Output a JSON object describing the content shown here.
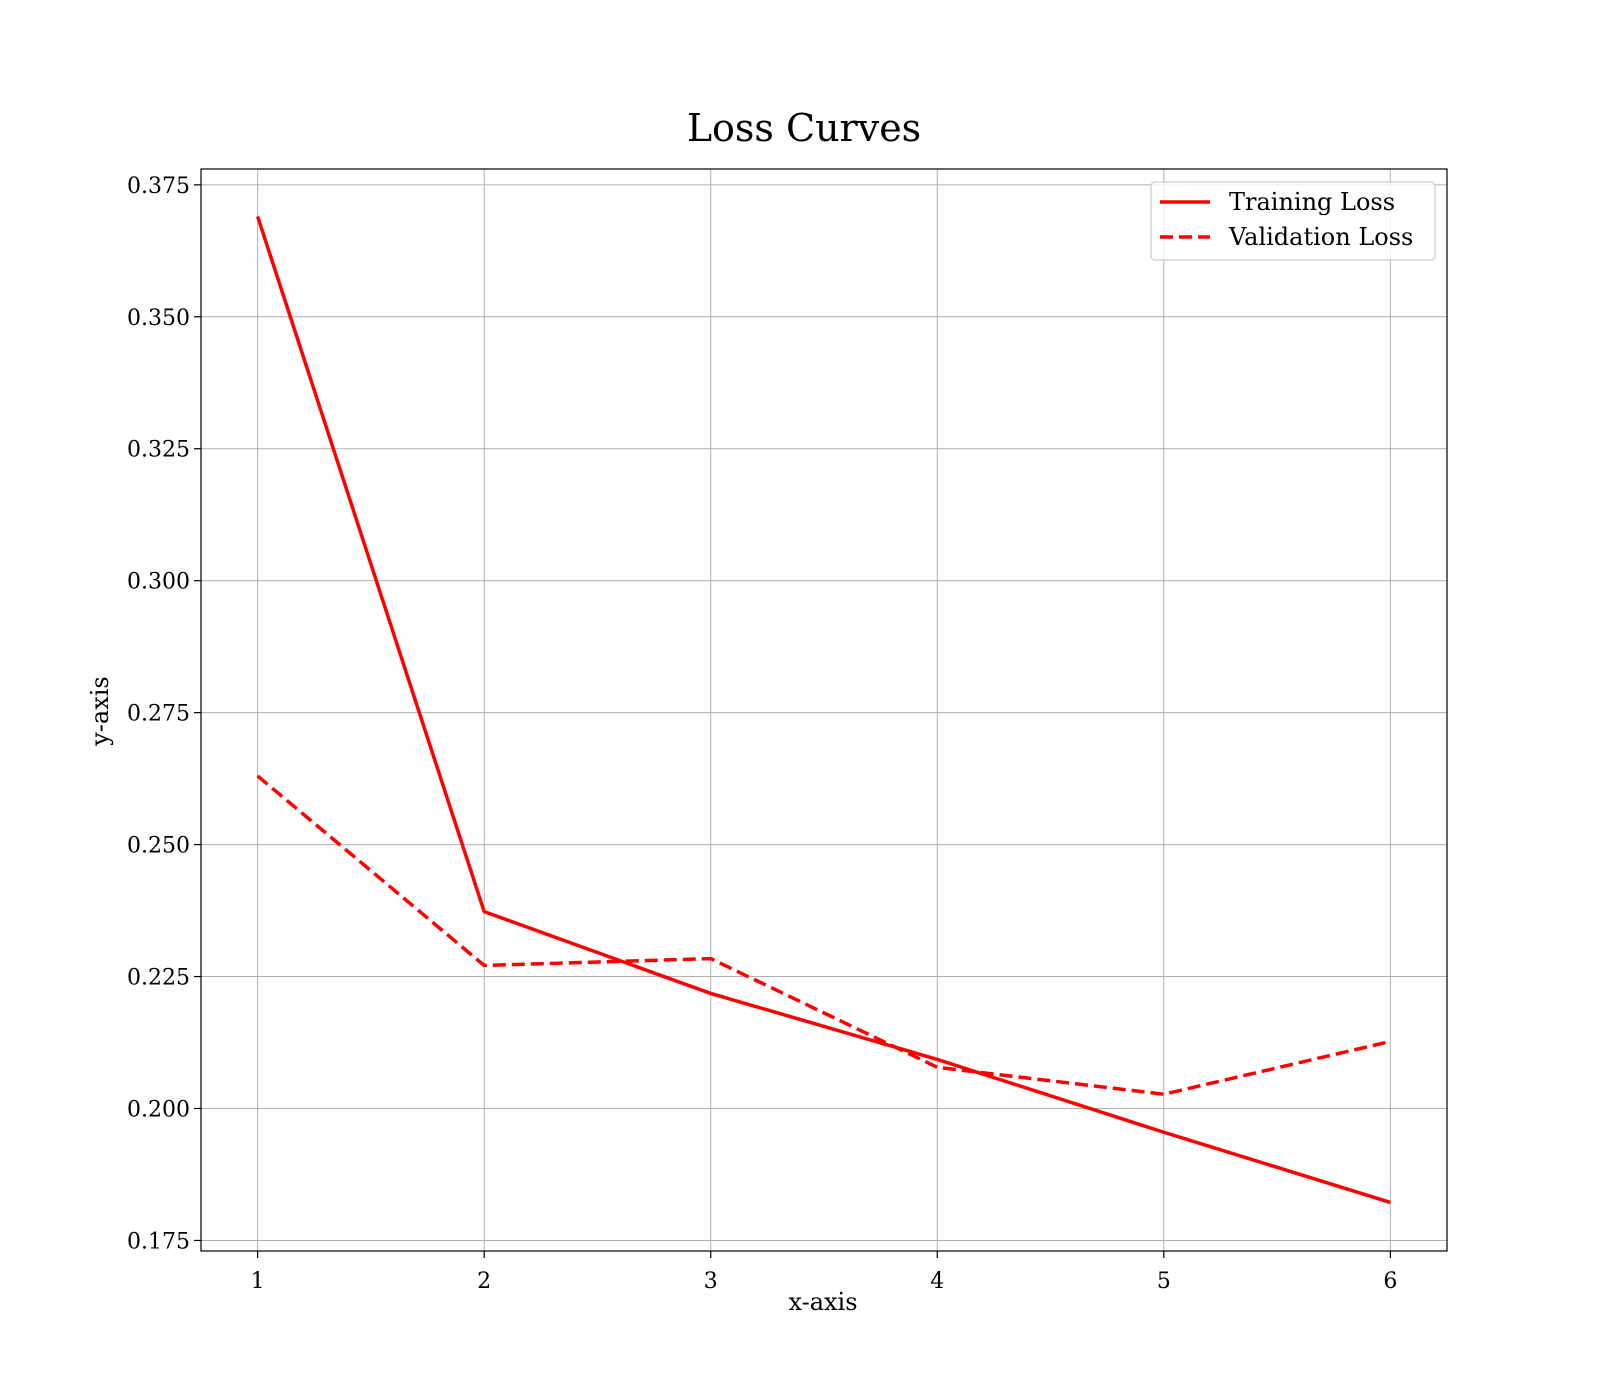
{
  "chart_data": {
    "type": "line",
    "title": "Loss Curves",
    "xlabel": "x-axis",
    "ylabel": "y-axis",
    "x": [
      1,
      2,
      3,
      4,
      5,
      6
    ],
    "xlim": [
      0.75,
      6.25
    ],
    "ylim": [
      0.173,
      0.378
    ],
    "xticks": [
      1,
      2,
      3,
      4,
      5,
      6
    ],
    "yticks": [
      0.175,
      0.2,
      0.225,
      0.25,
      0.275,
      0.3,
      0.325,
      0.35,
      0.375
    ],
    "ytick_labels": [
      "0.175",
      "0.200",
      "0.225",
      "0.250",
      "0.275",
      "0.300",
      "0.325",
      "0.350",
      "0.375"
    ],
    "grid": true,
    "legend_position": "top-right",
    "series": [
      {
        "name": "Training Loss",
        "values": [
          0.369,
          0.2373,
          0.2218,
          0.2093,
          0.1955,
          0.1822
        ],
        "color": "#ff0000",
        "style": "solid"
      },
      {
        "name": "Validation Loss",
        "values": [
          0.263,
          0.2271,
          0.2284,
          0.2078,
          0.2027,
          0.2127
        ],
        "color": "#ff0000",
        "style": "dashed"
      }
    ]
  }
}
